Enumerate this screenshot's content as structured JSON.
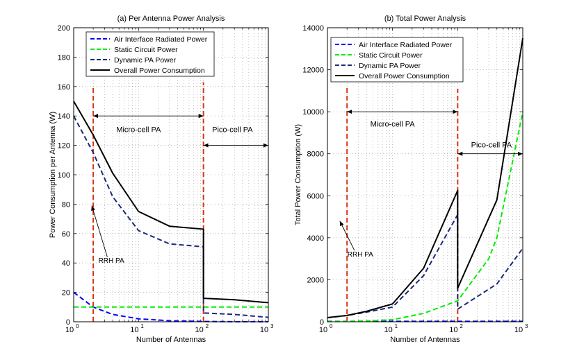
{
  "chart_data": [
    {
      "type": "line",
      "id": "left",
      "title": "(a) Per Antenna Power Analysis",
      "xlabel": "Number of Antennas",
      "ylabel": "Power Consumption per Antenna (W)",
      "xscale": "log",
      "xlim": [
        1,
        1000
      ],
      "ylim": [
        0,
        200
      ],
      "yticks": [
        0,
        20,
        40,
        60,
        80,
        100,
        120,
        140,
        160,
        180,
        200
      ],
      "xticks": [
        {
          "value": 1,
          "base": "10",
          "exp": "0"
        },
        {
          "value": 10,
          "base": "10",
          "exp": "1"
        },
        {
          "value": 100,
          "base": "10",
          "exp": "2"
        },
        {
          "value": 1000,
          "base": "10",
          "exp": "3"
        }
      ],
      "grid": true,
      "legend_position": "top-right",
      "series": [
        {
          "name": "Air Interface Radiated Power",
          "color": "#0000ff",
          "dash": "dashed",
          "x": [
            1,
            2,
            4,
            10,
            30,
            100,
            100,
            300,
            1000
          ],
          "y": [
            20,
            10,
            5,
            2,
            0.7,
            0.2,
            0.2,
            0.07,
            0.02
          ]
        },
        {
          "name": "Static Circuit Power",
          "color": "#00ee00",
          "dash": "dashed",
          "x": [
            1,
            1000
          ],
          "y": [
            10,
            10
          ]
        },
        {
          "name": "Dynamic PA Power",
          "color": "#1a2a7a",
          "dash": "dashed",
          "x": [
            1,
            2,
            4,
            10,
            30,
            100,
            100,
            300,
            1000
          ],
          "y": [
            140,
            115,
            85,
            62,
            53,
            51,
            6,
            5,
            3
          ]
        },
        {
          "name": "Overall Power Consumption",
          "color": "#000000",
          "dash": "solid",
          "x": [
            1,
            2,
            4,
            10,
            30,
            100,
            100,
            300,
            1000
          ],
          "y": [
            150,
            127,
            101,
            75,
            65,
            63,
            16,
            15,
            13
          ]
        }
      ],
      "vlines": [
        {
          "x": 2,
          "y0": 0,
          "y1": 160,
          "color": "#dd3311"
        },
        {
          "x": 100,
          "y0": 0,
          "y1": 163,
          "color": "#dd3311"
        }
      ],
      "annotations": [
        {
          "text": "Micro-cell PA",
          "x": 10,
          "y": 129
        },
        {
          "text": "Pico-cell PA",
          "x": 280,
          "y": 129
        },
        {
          "text": "RRH PA",
          "x": 3.8,
          "y": 40
        }
      ],
      "arrows": [
        {
          "from": [
            2,
            140
          ],
          "to": [
            100,
            140
          ],
          "double": true
        },
        {
          "from": [
            100,
            120
          ],
          "to": [
            1000,
            120
          ],
          "double": true
        },
        {
          "from": [
            3.3,
            44
          ],
          "to": [
            1.9,
            79
          ],
          "double": false
        }
      ]
    },
    {
      "type": "line",
      "id": "right",
      "title": "(b) Total Power Analysis",
      "xlabel": "Number of Antennas",
      "ylabel": "Total Power Consumption (W)",
      "xscale": "log",
      "xlim": [
        1,
        1000
      ],
      "ylim": [
        0,
        14000
      ],
      "yticks": [
        0,
        2000,
        4000,
        6000,
        8000,
        10000,
        12000,
        14000
      ],
      "xticks": [
        {
          "value": 1,
          "base": "10",
          "exp": "0"
        },
        {
          "value": 10,
          "base": "10",
          "exp": "1"
        },
        {
          "value": 100,
          "base": "10",
          "exp": "2"
        },
        {
          "value": 1000,
          "base": "10",
          "exp": "3"
        }
      ],
      "grid": true,
      "legend_position": "top-left",
      "series": [
        {
          "name": "Air Interface Radiated Power",
          "color": "#0000ff",
          "dash": "dashed",
          "x": [
            1,
            10,
            100,
            1000
          ],
          "y": [
            20,
            20,
            20,
            20
          ]
        },
        {
          "name": "Static Circuit Power",
          "color": "#00ee00",
          "dash": "dashed",
          "x": [
            1,
            2,
            4,
            10,
            30,
            100,
            100,
            300,
            400,
            1000
          ],
          "y": [
            10,
            20,
            40,
            100,
            400,
            1000,
            1000,
            3000,
            4000,
            10000
          ]
        },
        {
          "name": "Dynamic PA Power",
          "color": "#1a2a7a",
          "dash": "dashed",
          "x": [
            1,
            2,
            4,
            10,
            30,
            100,
            100,
            400,
            1000
          ],
          "y": [
            190,
            300,
            460,
            700,
            2200,
            5100,
            600,
            1800,
            3500
          ]
        },
        {
          "name": "Overall Power Consumption",
          "color": "#000000",
          "dash": "solid",
          "x": [
            1,
            2,
            4,
            10,
            30,
            100,
            100,
            400,
            1000
          ],
          "y": [
            200,
            300,
            500,
            850,
            2550,
            6250,
            1600,
            5800,
            13500
          ]
        }
      ],
      "vlines": [
        {
          "x": 2,
          "y0": 0,
          "y1": 11200,
          "color": "#dd3311"
        },
        {
          "x": 100,
          "y0": 0,
          "y1": 11100,
          "color": "#dd3311"
        }
      ],
      "annotations": [
        {
          "text": "Micro-cell PA",
          "x": 10,
          "y": 9300
        },
        {
          "text": "Pico-cell PA",
          "x": 330,
          "y": 8300
        },
        {
          "text": "RRH PA",
          "x": 3.2,
          "y": 3100
        }
      ],
      "arrows": [
        {
          "from": [
            2,
            10000
          ],
          "to": [
            100,
            10000
          ],
          "double": true
        },
        {
          "from": [
            100,
            8000
          ],
          "to": [
            1000,
            8000
          ],
          "double": true
        },
        {
          "from": [
            2.6,
            3400
          ],
          "to": [
            1.55,
            4800
          ],
          "double": false
        }
      ]
    }
  ]
}
